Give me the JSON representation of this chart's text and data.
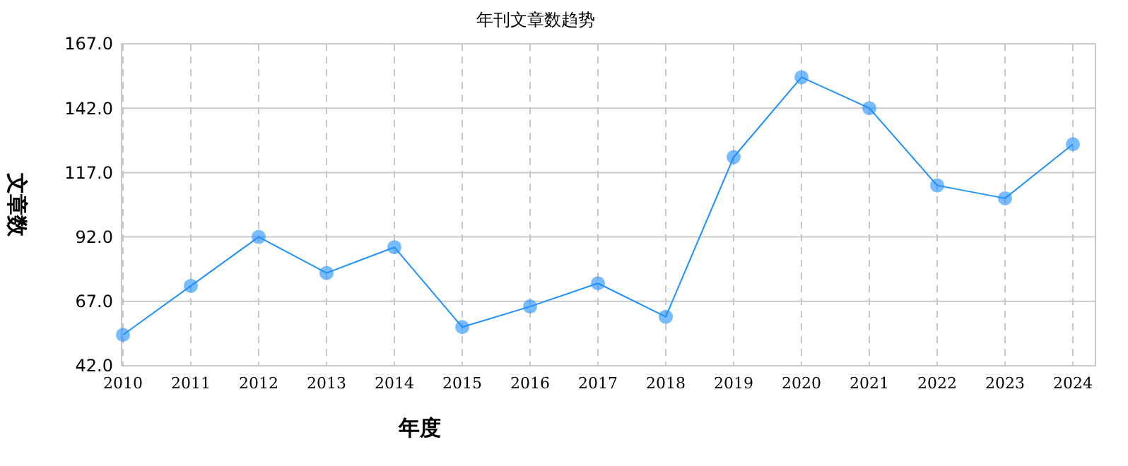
{
  "chart_data": {
    "type": "line",
    "title": "年刊文章数趋势",
    "xlabel": "年度",
    "ylabel": "文章数",
    "categories": [
      "2010",
      "2011",
      "2012",
      "2013",
      "2014",
      "2015",
      "2016",
      "2017",
      "2018",
      "2019",
      "2020",
      "2021",
      "2022",
      "2023",
      "2024"
    ],
    "series": [
      {
        "color": "#1e90ff",
        "values": [
          54,
          73,
          92,
          78,
          88,
          57,
          65,
          74,
          61,
          123,
          154,
          142,
          112,
          107,
          128
        ]
      }
    ],
    "ylim": [
      42,
      167
    ],
    "yticks": [
      {
        "value": 42,
        "label": "42.0"
      },
      {
        "value": 67,
        "label": "67.0"
      },
      {
        "value": 92,
        "label": "92.0"
      },
      {
        "value": 117,
        "label": "117.0"
      },
      {
        "value": 142,
        "label": "142.0"
      },
      {
        "value": 167,
        "label": "167.0"
      }
    ],
    "grid": true,
    "marker": "circle",
    "line_style": "solid"
  }
}
